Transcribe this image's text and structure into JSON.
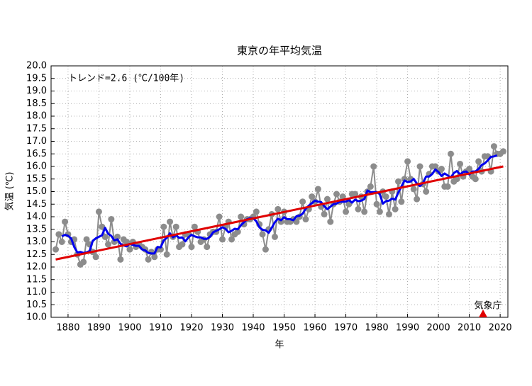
{
  "chart_data": {
    "type": "line",
    "title": "東京の年平均気温",
    "ylabel": "気温 (℃)",
    "xlabel": "年",
    "annotation": "トレンド=2.6 (℃/100年)",
    "source": "気象庁",
    "x": [
      1876,
      1877,
      1878,
      1879,
      1880,
      1881,
      1882,
      1883,
      1884,
      1885,
      1886,
      1887,
      1888,
      1889,
      1890,
      1891,
      1892,
      1893,
      1894,
      1895,
      1896,
      1897,
      1898,
      1899,
      1900,
      1901,
      1902,
      1903,
      1904,
      1905,
      1906,
      1907,
      1908,
      1909,
      1910,
      1911,
      1912,
      1913,
      1914,
      1915,
      1916,
      1917,
      1918,
      1919,
      1920,
      1921,
      1922,
      1923,
      1924,
      1925,
      1926,
      1927,
      1928,
      1929,
      1930,
      1931,
      1932,
      1933,
      1934,
      1935,
      1936,
      1937,
      1938,
      1939,
      1940,
      1941,
      1942,
      1943,
      1944,
      1945,
      1946,
      1947,
      1948,
      1949,
      1950,
      1951,
      1952,
      1953,
      1954,
      1955,
      1956,
      1957,
      1958,
      1959,
      1960,
      1961,
      1962,
      1963,
      1964,
      1965,
      1966,
      1967,
      1968,
      1969,
      1970,
      1971,
      1972,
      1973,
      1974,
      1975,
      1976,
      1977,
      1978,
      1979,
      1980,
      1981,
      1982,
      1983,
      1984,
      1985,
      1986,
      1987,
      1988,
      1989,
      1990,
      1991,
      1992,
      1993,
      1994,
      1995,
      1996,
      1997,
      1998,
      1999,
      2000,
      2001,
      2002,
      2003,
      2004,
      2005,
      2006,
      2007,
      2008,
      2009,
      2010,
      2011,
      2012,
      2013,
      2014,
      2015,
      2016,
      2017,
      2018,
      2019,
      2020,
      2021
    ],
    "series": [
      {
        "color": "#8c8c8c",
        "values": [
          12.7,
          13.3,
          13.0,
          13.8,
          13.3,
          13.0,
          13.1,
          12.5,
          12.1,
          12.2,
          13.1,
          12.9,
          12.6,
          12.4,
          14.2,
          13.6,
          13.2,
          12.9,
          13.9,
          13.0,
          13.2,
          12.3,
          13.1,
          13.0,
          12.7,
          13.0,
          12.8,
          12.9,
          12.8,
          12.7,
          12.3,
          12.6,
          12.4,
          12.7,
          12.7,
          13.6,
          12.5,
          13.8,
          13.2,
          13.6,
          12.8,
          12.9,
          13.3,
          13.3,
          12.8,
          13.6,
          13.4,
          13.0,
          13.1,
          12.8,
          13.3,
          13.4,
          13.4,
          14.0,
          13.1,
          13.6,
          13.8,
          13.1,
          13.3,
          13.4,
          14.0,
          13.7,
          13.9,
          13.9,
          14.0,
          14.2,
          13.7,
          13.3,
          12.7,
          13.5,
          14.1,
          13.2,
          14.3,
          13.8,
          14.2,
          13.8,
          13.8,
          13.9,
          13.8,
          14.0,
          14.6,
          13.9,
          14.3,
          14.8,
          14.6,
          15.1,
          14.4,
          14.1,
          14.7,
          13.8,
          14.5,
          14.9,
          14.6,
          14.8,
          14.2,
          14.5,
          14.9,
          14.9,
          14.3,
          14.8,
          14.2,
          15.0,
          15.2,
          16.0,
          14.5,
          14.2,
          15.0,
          14.8,
          14.1,
          15.0,
          14.3,
          15.4,
          14.6,
          15.5,
          16.2,
          15.5,
          15.1,
          14.7,
          16.0,
          15.3,
          15.0,
          15.7,
          16.0,
          16.0,
          15.8,
          15.9,
          15.2,
          15.2,
          16.5,
          15.4,
          15.5,
          16.1,
          15.6,
          15.8,
          15.9,
          15.6,
          15.5,
          16.2,
          15.8,
          16.4,
          16.4,
          15.8,
          16.8,
          16.5,
          16.5,
          16.6
        ],
        "markers": true
      },
      {
        "color": "#0000ee",
        "values": [
          null,
          null,
          13.22,
          13.28,
          13.24,
          13.14,
          12.8,
          12.58,
          12.6,
          12.56,
          12.58,
          12.64,
          13.04,
          13.14,
          13.2,
          13.26,
          13.56,
          13.32,
          13.24,
          13.06,
          13.1,
          12.92,
          12.86,
          12.82,
          12.92,
          12.88,
          12.84,
          12.84,
          12.7,
          12.66,
          12.56,
          12.54,
          12.54,
          12.8,
          12.78,
          13.06,
          13.16,
          13.34,
          13.18,
          13.26,
          13.16,
          13.18,
          13.02,
          13.18,
          13.28,
          13.22,
          13.18,
          13.18,
          13.12,
          13.12,
          13.2,
          13.38,
          13.44,
          13.5,
          13.58,
          13.52,
          13.38,
          13.44,
          13.52,
          13.5,
          13.66,
          13.78,
          13.9,
          13.94,
          13.94,
          13.82,
          13.58,
          13.48,
          13.46,
          13.36,
          13.56,
          13.78,
          13.92,
          13.86,
          13.98,
          13.9,
          13.9,
          13.86,
          14.02,
          14.04,
          14.12,
          14.32,
          14.44,
          14.54,
          14.64,
          14.6,
          14.58,
          14.42,
          14.3,
          14.4,
          14.5,
          14.52,
          14.6,
          14.6,
          14.6,
          14.66,
          14.56,
          14.68,
          14.62,
          14.64,
          14.7,
          15.04,
          14.98,
          14.98,
          14.98,
          14.9,
          14.52,
          14.62,
          14.64,
          14.72,
          14.68,
          14.96,
          15.2,
          15.44,
          15.38,
          15.4,
          15.5,
          15.32,
          15.22,
          15.34,
          15.6,
          15.6,
          15.7,
          15.88,
          15.78,
          15.62,
          15.72,
          15.64,
          15.56,
          15.74,
          15.82,
          15.68,
          15.78,
          15.8,
          15.68,
          15.8,
          15.8,
          15.9,
          16.06,
          16.12,
          16.24,
          16.38,
          16.4,
          16.44,
          null,
          null
        ],
        "markers": false
      }
    ],
    "trend": {
      "color": "#e00000",
      "x": [
        1876,
        2021
      ],
      "values": [
        12.3,
        16.0
      ]
    },
    "xlim": [
      1874.5,
      2022.5
    ],
    "xticks": [
      1880,
      1890,
      1900,
      1910,
      1920,
      1930,
      1940,
      1950,
      1960,
      1970,
      1980,
      1990,
      2000,
      2010,
      2020
    ],
    "ylim": [
      10,
      20
    ],
    "yticks": [
      {
        "value": 10,
        "label": "10.0"
      },
      10.5,
      {
        "value": 11,
        "label": "11.0"
      },
      11.5,
      {
        "value": 12,
        "label": "12.0"
      },
      12.5,
      {
        "value": 13,
        "label": "13.0"
      },
      13.5,
      {
        "value": 14,
        "label": "14.0"
      },
      14.5,
      {
        "value": 15,
        "label": "15.0"
      },
      15.5,
      {
        "value": 16,
        "label": "16.0"
      },
      16.5,
      {
        "value": 17,
        "label": "17.0"
      },
      17.5,
      {
        "value": 18,
        "label": "18.0"
      },
      18.5,
      {
        "value": 19,
        "label": "19.0"
      },
      19.5,
      {
        "value": 20,
        "label": "20.0"
      }
    ],
    "grid": true
  }
}
